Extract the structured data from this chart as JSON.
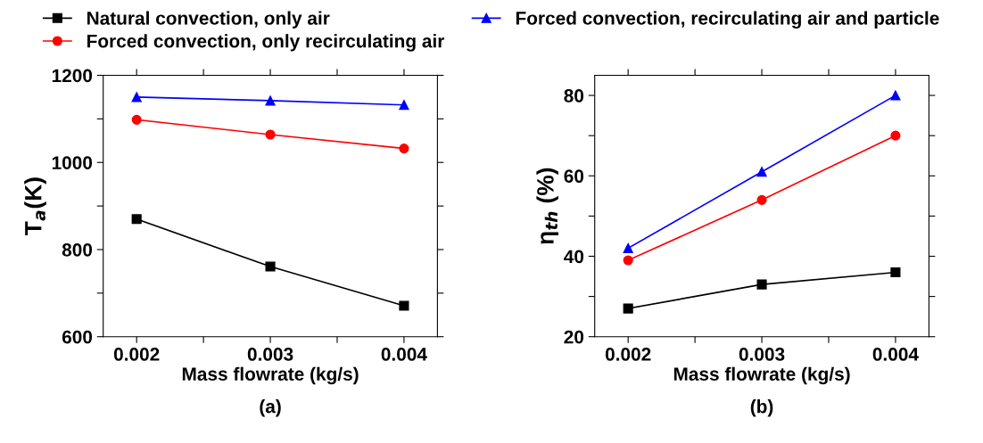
{
  "chart_data": [
    {
      "type": "line",
      "x": [
        0.002,
        0.003,
        0.004
      ],
      "xlabel": "Mass flowrate (kg/s)",
      "ylabel": "T$_{a}$(K)",
      "annotations": [
        "(a)"
      ],
      "xlim": [
        0.00175,
        0.00425
      ],
      "xticks": [
        {
          "value": 0.002,
          "label": "0.002"
        },
        {
          "value": 0.0025,
          "label": null
        },
        {
          "value": 0.003,
          "label": "0.003"
        },
        {
          "value": 0.0035,
          "label": null
        },
        {
          "value": 0.004,
          "label": "0.004"
        }
      ],
      "ylim": [
        600,
        1200
      ],
      "yticks": [
        600,
        {
          "value": 700,
          "label": null
        },
        800,
        {
          "value": 900,
          "label": null
        },
        1000,
        {
          "value": 1100,
          "label": null
        },
        1200
      ],
      "grid": false,
      "legend": "top",
      "series": [
        {
          "name": "Natural convection, only air",
          "color": "#000000",
          "marker": "square",
          "values": [
            870,
            761,
            671
          ]
        },
        {
          "name": "Forced convection, only recirculating air",
          "color": "#ff0000",
          "marker": "circle",
          "values": [
            1098,
            1064,
            1032
          ]
        },
        {
          "name": "Forced convection, recirculating air and particle",
          "color": "#0000ff",
          "marker": "triangle",
          "values": [
            1150,
            1142,
            1132
          ]
        }
      ]
    },
    {
      "type": "line",
      "x": [
        0.002,
        0.003,
        0.004
      ],
      "xlabel": "Mass flowrate (kg/s)",
      "ylabel": "η$_{th}$ (%)",
      "annotations": [
        "(b)"
      ],
      "xlim": [
        0.00175,
        0.00425
      ],
      "xticks": [
        {
          "value": 0.002,
          "label": "0.002"
        },
        {
          "value": 0.0025,
          "label": null
        },
        {
          "value": 0.003,
          "label": "0.003"
        },
        {
          "value": 0.0035,
          "label": null
        },
        {
          "value": 0.004,
          "label": "0.004"
        }
      ],
      "ylim": [
        20,
        85
      ],
      "yticks": [
        20,
        {
          "value": 30,
          "label": null
        },
        40,
        {
          "value": 50,
          "label": null
        },
        60,
        {
          "value": 70,
          "label": null
        },
        80
      ],
      "grid": false,
      "series": [
        {
          "color": "#000000",
          "marker": "square",
          "values": [
            27,
            33,
            36
          ]
        },
        {
          "color": "#ff0000",
          "marker": "circle",
          "values": [
            39,
            54,
            70
          ]
        },
        {
          "color": "#0000ff",
          "marker": "triangle",
          "values": [
            42,
            61,
            80
          ]
        }
      ]
    }
  ]
}
